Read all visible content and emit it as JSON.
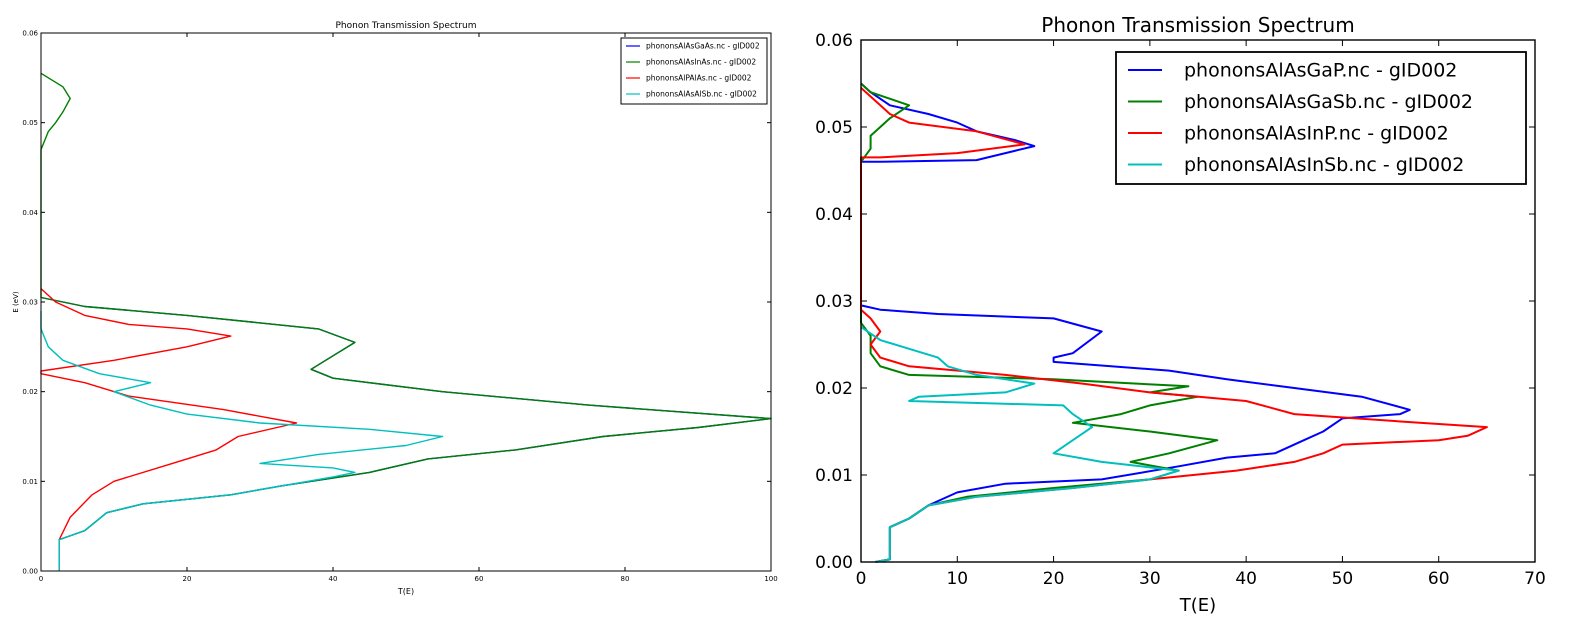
{
  "chart_data": [
    {
      "type": "line",
      "title": "Phonon Transmission Spectrum",
      "xlabel": "T(E)",
      "ylabel": "E (eV)",
      "xlim": [
        0,
        100
      ],
      "ylim": [
        0,
        0.06
      ],
      "xticks": [
        "0",
        "20",
        "40",
        "60",
        "80",
        "100"
      ],
      "yticks": [
        "0.00",
        "0.01",
        "0.02",
        "0.03",
        "0.04",
        "0.05",
        "0.06"
      ],
      "legend_position": "top-right",
      "series": [
        {
          "name": "phononsAlAsGaAs.nc - gID002",
          "color": "#0000ff",
          "points": [
            [
              2.5,
              0
            ],
            [
              2.5,
              0.0035
            ],
            [
              6,
              0.0045
            ],
            [
              9,
              0.0065
            ],
            [
              14,
              0.0075
            ],
            [
              26,
              0.0085
            ],
            [
              33,
              0.0095
            ],
            [
              45,
              0.011
            ],
            [
              53,
              0.0125
            ],
            [
              65,
              0.0135
            ],
            [
              77,
              0.015
            ],
            [
              90,
              0.016
            ],
            [
              100,
              0.017
            ],
            [
              75,
              0.0185
            ],
            [
              55,
              0.02
            ],
            [
              40,
              0.0215
            ],
            [
              37,
              0.0225
            ],
            [
              40,
              0.024
            ],
            [
              43,
              0.0255
            ],
            [
              38,
              0.027
            ],
            [
              20,
              0.0285
            ],
            [
              6,
              0.0295
            ],
            [
              0,
              0.0305
            ]
          ]
        },
        {
          "name": "phononsAlAsInAs.nc - gID002",
          "color": "#008000",
          "points": [
            [
              2.5,
              0
            ],
            [
              2.5,
              0.0035
            ],
            [
              6,
              0.0045
            ],
            [
              9,
              0.0065
            ],
            [
              14,
              0.0075
            ],
            [
              26,
              0.0085
            ],
            [
              33,
              0.0095
            ],
            [
              45,
              0.011
            ],
            [
              53,
              0.0125
            ],
            [
              65,
              0.0135
            ],
            [
              77,
              0.015
            ],
            [
              90,
              0.016
            ],
            [
              100,
              0.017
            ],
            [
              75,
              0.0185
            ],
            [
              55,
              0.02
            ],
            [
              40,
              0.0215
            ],
            [
              37,
              0.0225
            ],
            [
              40,
              0.024
            ],
            [
              43,
              0.0255
            ],
            [
              38,
              0.027
            ],
            [
              20,
              0.0285
            ],
            [
              6,
              0.0295
            ],
            [
              0,
              0.0305
            ],
            [
              0,
              0.047
            ],
            [
              1,
              0.049
            ],
            [
              2,
              0.05
            ],
            [
              3,
              0.0512
            ],
            [
              4,
              0.0527
            ],
            [
              3,
              0.054
            ],
            [
              0,
              0.0555
            ]
          ]
        },
        {
          "name": "phononsAlPAlAs.nc - gID002",
          "color": "#ff0000",
          "points": [
            [
              2.5,
              0
            ],
            [
              2.5,
              0.0035
            ],
            [
              4,
              0.006
            ],
            [
              7,
              0.0085
            ],
            [
              10,
              0.01
            ],
            [
              18,
              0.012
            ],
            [
              24,
              0.0135
            ],
            [
              27,
              0.015
            ],
            [
              35,
              0.0165
            ],
            [
              25,
              0.018
            ],
            [
              12,
              0.0195
            ],
            [
              6,
              0.021
            ],
            [
              0,
              0.022
            ],
            [
              0,
              0.0223
            ],
            [
              10,
              0.0235
            ],
            [
              20,
              0.025
            ],
            [
              26,
              0.0262
            ],
            [
              20,
              0.027
            ],
            [
              12,
              0.0275
            ],
            [
              6,
              0.0285
            ],
            [
              2,
              0.03
            ],
            [
              0,
              0.0315
            ]
          ]
        },
        {
          "name": "phononsAlAsAlSb.nc - gID002",
          "color": "#00bfbf",
          "points": [
            [
              2.5,
              0
            ],
            [
              2.5,
              0.0035
            ],
            [
              6,
              0.0045
            ],
            [
              9,
              0.0065
            ],
            [
              14,
              0.0075
            ],
            [
              26,
              0.0085
            ],
            [
              40,
              0.0105
            ],
            [
              43,
              0.011
            ],
            [
              40,
              0.0115
            ],
            [
              30,
              0.012
            ],
            [
              38,
              0.013
            ],
            [
              50,
              0.014
            ],
            [
              55,
              0.015
            ],
            [
              45,
              0.0158
            ],
            [
              30,
              0.0165
            ],
            [
              20,
              0.0175
            ],
            [
              15,
              0.0185
            ],
            [
              10,
              0.02
            ],
            [
              15,
              0.021
            ],
            [
              8,
              0.022
            ],
            [
              3,
              0.0235
            ],
            [
              1,
              0.025
            ],
            [
              0,
              0.027
            ],
            [
              0,
              0.029
            ]
          ]
        }
      ]
    },
    {
      "type": "line",
      "title": "Phonon Transmission Spectrum",
      "xlabel": "T(E)",
      "ylabel": "",
      "xlim": [
        0,
        70
      ],
      "ylim": [
        0,
        0.06
      ],
      "xticks": [
        "0",
        "10",
        "20",
        "30",
        "40",
        "50",
        "60",
        "70"
      ],
      "yticks": [
        "0.00",
        "0.01",
        "0.02",
        "0.03",
        "0.04",
        "0.05",
        "0.06"
      ],
      "legend_position": "top-right",
      "series": [
        {
          "name": "phononsAlAsGaP.nc - gID002",
          "color": "#0000ff",
          "points": [
            [
              1.5,
              0
            ],
            [
              3,
              0.0003
            ],
            [
              3,
              0.004
            ],
            [
              5,
              0.005
            ],
            [
              7,
              0.0065
            ],
            [
              10,
              0.008
            ],
            [
              15,
              0.009
            ],
            [
              25,
              0.0095
            ],
            [
              33,
              0.011
            ],
            [
              38,
              0.012
            ],
            [
              43,
              0.0125
            ],
            [
              46,
              0.014
            ],
            [
              48,
              0.015
            ],
            [
              50,
              0.0165
            ],
            [
              56,
              0.017
            ],
            [
              57,
              0.0175
            ],
            [
              52,
              0.019
            ],
            [
              45,
              0.02
            ],
            [
              38,
              0.021
            ],
            [
              32,
              0.022
            ],
            [
              20,
              0.023
            ],
            [
              20,
              0.0235
            ],
            [
              22,
              0.024
            ],
            [
              25,
              0.0265
            ],
            [
              20,
              0.028
            ],
            [
              8,
              0.0285
            ],
            [
              2,
              0.029
            ],
            [
              0,
              0.0295
            ],
            [
              0,
              0.046
            ],
            [
              2,
              0.046
            ],
            [
              12,
              0.0462
            ],
            [
              15,
              0.047
            ],
            [
              18,
              0.0478
            ],
            [
              16,
              0.0485
            ],
            [
              12,
              0.0495
            ],
            [
              10,
              0.0505
            ],
            [
              7,
              0.0515
            ],
            [
              3,
              0.0525
            ],
            [
              1,
              0.054
            ],
            [
              0,
              0.055
            ]
          ]
        },
        {
          "name": "phononsAlAsGaSb.nc - gID002",
          "color": "#008000",
          "points": [
            [
              1.5,
              0
            ],
            [
              3,
              0.0003
            ],
            [
              3,
              0.004
            ],
            [
              5,
              0.005
            ],
            [
              7,
              0.0065
            ],
            [
              11,
              0.0075
            ],
            [
              20,
              0.0085
            ],
            [
              30,
              0.0095
            ],
            [
              33,
              0.0105
            ],
            [
              28,
              0.0115
            ],
            [
              32,
              0.0125
            ],
            [
              37,
              0.014
            ],
            [
              30,
              0.015
            ],
            [
              22,
              0.016
            ],
            [
              27,
              0.017
            ],
            [
              30,
              0.018
            ],
            [
              35,
              0.019
            ],
            [
              30,
              0.0195
            ],
            [
              34,
              0.0202
            ],
            [
              20,
              0.021
            ],
            [
              5,
              0.0215
            ],
            [
              2,
              0.0225
            ],
            [
              1,
              0.024
            ],
            [
              1,
              0.026
            ],
            [
              0,
              0.0275
            ],
            [
              0,
              0.046
            ],
            [
              1,
              0.0475
            ],
            [
              1,
              0.049
            ],
            [
              2,
              0.05
            ],
            [
              3,
              0.051
            ],
            [
              5,
              0.0525
            ],
            [
              1,
              0.054
            ],
            [
              0,
              0.055
            ]
          ]
        },
        {
          "name": "phononsAlAsInP.nc - gID002",
          "color": "#ff0000",
          "points": [
            [
              1.5,
              0
            ],
            [
              3,
              0.0003
            ],
            [
              3,
              0.004
            ],
            [
              5,
              0.005
            ],
            [
              7,
              0.0065
            ],
            [
              12,
              0.0075
            ],
            [
              22,
              0.0085
            ],
            [
              30,
              0.0095
            ],
            [
              39,
              0.0105
            ],
            [
              45,
              0.0115
            ],
            [
              48,
              0.0125
            ],
            [
              50,
              0.0135
            ],
            [
              60,
              0.014
            ],
            [
              63,
              0.0145
            ],
            [
              65,
              0.0155
            ],
            [
              58,
              0.016
            ],
            [
              45,
              0.017
            ],
            [
              40,
              0.0185
            ],
            [
              30,
              0.0195
            ],
            [
              23,
              0.0205
            ],
            [
              15,
              0.0215
            ],
            [
              5,
              0.0225
            ],
            [
              2,
              0.0235
            ],
            [
              1,
              0.025
            ],
            [
              2,
              0.0265
            ],
            [
              1,
              0.028
            ],
            [
              0,
              0.029
            ],
            [
              0,
              0.0465
            ],
            [
              2,
              0.0465
            ],
            [
              10,
              0.047
            ],
            [
              17,
              0.048
            ],
            [
              12,
              0.0495
            ],
            [
              5,
              0.0505
            ],
            [
              3,
              0.0515
            ],
            [
              2,
              0.0525
            ],
            [
              0,
              0.0545
            ]
          ]
        },
        {
          "name": "phononsAlAsInSb.nc - gID002",
          "color": "#00bfbf",
          "points": [
            [
              1.5,
              0
            ],
            [
              3,
              0.0003
            ],
            [
              3,
              0.004
            ],
            [
              5,
              0.005
            ],
            [
              7,
              0.0065
            ],
            [
              12,
              0.0075
            ],
            [
              22,
              0.0085
            ],
            [
              30,
              0.0095
            ],
            [
              33,
              0.0105
            ],
            [
              25,
              0.0115
            ],
            [
              20,
              0.0125
            ],
            [
              22,
              0.014
            ],
            [
              24,
              0.0155
            ],
            [
              22,
              0.017
            ],
            [
              21,
              0.018
            ],
            [
              5,
              0.0185
            ],
            [
              6,
              0.019
            ],
            [
              15,
              0.0195
            ],
            [
              18,
              0.0205
            ],
            [
              12,
              0.0215
            ],
            [
              9,
              0.0225
            ],
            [
              8,
              0.0235
            ],
            [
              5,
              0.0245
            ],
            [
              2,
              0.0255
            ],
            [
              0,
              0.027
            ]
          ]
        }
      ]
    }
  ]
}
